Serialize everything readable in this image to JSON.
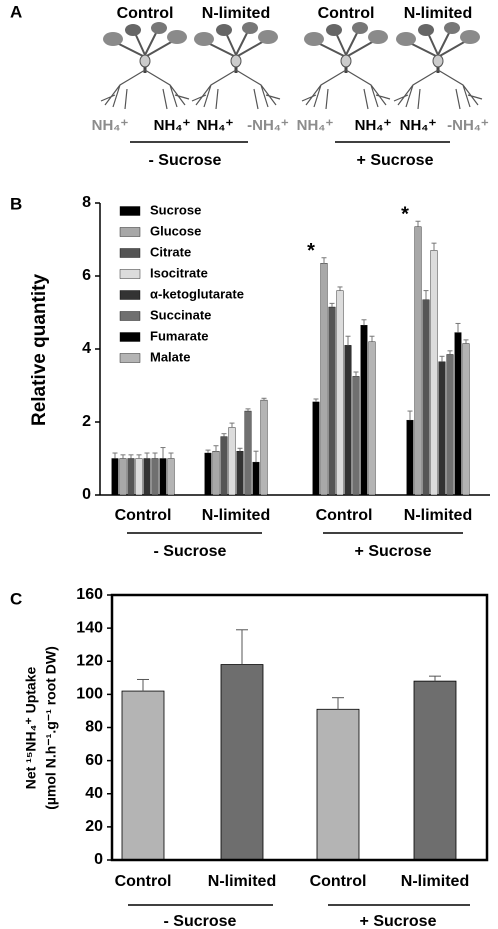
{
  "panel_a": {
    "panel": "A",
    "conditions": [
      "Control",
      "N-limited",
      "Control",
      "N-limited"
    ],
    "ions": [
      {
        "label": "NH₄⁺",
        "color": "#8c8c8c"
      },
      {
        "label": "NH₄⁺",
        "color": "#000000"
      },
      {
        "label": "NH₄⁺",
        "color": "#000000"
      },
      {
        "label": "-NH₄⁺",
        "color": "#8c8c8c"
      },
      {
        "label": "NH₄⁺",
        "color": "#8c8c8c"
      },
      {
        "label": "NH₄⁺",
        "color": "#000000"
      },
      {
        "label": "NH₄⁺",
        "color": "#000000"
      },
      {
        "label": "-NH₄⁺",
        "color": "#8c8c8c"
      }
    ],
    "group_labels": [
      "- Sucrose",
      "+ Sucrose"
    ]
  },
  "chart_data": [
    {
      "type": "grouped-bar",
      "panel": "B",
      "y_label": "Relative quantity",
      "categories": [
        "Control",
        "N-limited",
        "Control",
        "N-limited"
      ],
      "group_labels": [
        "- Sucrose",
        "+ Sucrose"
      ],
      "ylim": [
        0,
        8
      ],
      "yticks": [
        0,
        2,
        4,
        6,
        8
      ],
      "significance": [
        null,
        null,
        "*",
        "*"
      ],
      "series": [
        {
          "name": "Sucrose",
          "color": "#000000",
          "values": [
            1.0,
            1.15,
            2.55,
            2.05
          ],
          "errors": [
            0.15,
            0.08,
            0.08,
            0.25
          ]
        },
        {
          "name": "Glucose",
          "color": "#a8a8a8",
          "values": [
            1.0,
            1.2,
            6.35,
            7.35
          ],
          "errors": [
            0.1,
            0.15,
            0.15,
            0.15
          ]
        },
        {
          "name": "Citrate",
          "color": "#555555",
          "values": [
            1.0,
            1.6,
            5.15,
            5.35
          ],
          "errors": [
            0.1,
            0.08,
            0.1,
            0.25
          ]
        },
        {
          "name": "Isocitrate",
          "color": "#dcdcdc",
          "values": [
            1.0,
            1.85,
            5.6,
            6.7
          ],
          "errors": [
            0.1,
            0.12,
            0.1,
            0.2
          ]
        },
        {
          "name": "α-ketoglutarate",
          "color": "#333333",
          "values": [
            1.0,
            1.2,
            4.1,
            3.65
          ],
          "errors": [
            0.15,
            0.08,
            0.25,
            0.15
          ]
        },
        {
          "name": "Succinate",
          "color": "#707070",
          "values": [
            1.0,
            2.3,
            3.25,
            3.85
          ],
          "errors": [
            0.15,
            0.06,
            0.12,
            0.1
          ]
        },
        {
          "name": "Fumarate",
          "color": "#000000",
          "values": [
            1.0,
            0.9,
            4.65,
            4.45
          ],
          "errors": [
            0.3,
            0.3,
            0.15,
            0.25
          ]
        },
        {
          "name": "Malate",
          "color": "#b4b4b4",
          "values": [
            1.0,
            2.6,
            4.2,
            4.15
          ],
          "errors": [
            0.15,
            0.05,
            0.15,
            0.1
          ]
        }
      ]
    },
    {
      "type": "bar",
      "panel": "C",
      "y_label": [
        "Net ¹⁵NH₄⁺ Uptake",
        "(µmol N.h⁻¹.g⁻¹ root DW)"
      ],
      "categories": [
        "Control",
        "N-limited",
        "Control",
        "N-limited"
      ],
      "group_labels": [
        "- Sucrose",
        "+ Sucrose"
      ],
      "ylim": [
        0,
        160
      ],
      "yticks": [
        0,
        20,
        40,
        60,
        80,
        100,
        120,
        140,
        160
      ],
      "values": [
        102,
        118,
        91,
        108
      ],
      "errors": [
        7,
        21,
        7,
        3
      ],
      "colors": [
        "#b4b4b4",
        "#6e6e6e",
        "#b4b4b4",
        "#6e6e6e"
      ]
    }
  ]
}
